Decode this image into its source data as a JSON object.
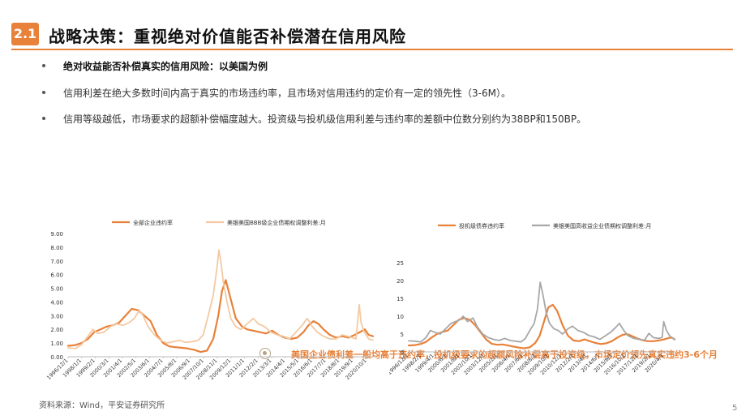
{
  "header": {
    "badge": "2.1",
    "title": "战略决策：重视绝对价值能否补偿潜在信用风险"
  },
  "bullets": [
    "绝对收益能否补偿真实的信用风险：以美国为例",
    "信用利差在绝大多数时间内高于真实的市场违约率，且市场对信用违约的定价有一定的领先性（3-6M）。",
    "信用等级越低，市场要求的超额补偿幅度越大。投资级与投机级信用利差与违约率的差额中位数分别约为38BP和150BP。"
  ],
  "callout": "美国企业债利差一般均高于违约率，投机级要求的超额风险补偿高于投资级，市场定价领先真实违约3-6个月",
  "footer": {
    "source": "资料来源：Wind，平安证券研究所",
    "page": "5"
  },
  "colors": {
    "accent": "#e8813a",
    "spread_light": "#f3c9a2",
    "spread_gray": "#a8a8a8",
    "icon": "#b8a483"
  },
  "chart_data": [
    {
      "type": "line",
      "ylim": [
        0,
        9
      ],
      "yticks": [
        "0.00",
        "1.00",
        "2.00",
        "3.00",
        "4.00",
        "5.00",
        "6.00",
        "7.00",
        "8.00",
        "9.00"
      ],
      "x_start": 1996.917,
      "x_end": 2021.25,
      "xticks": [
        {
          "label": "1996/12/1",
          "x": 1996.917
        },
        {
          "label": "1998/1/1",
          "x": 1998.0
        },
        {
          "label": "1999/2/1",
          "x": 1999.083
        },
        {
          "label": "2000/3/1",
          "x": 2000.167
        },
        {
          "label": "2001/4/1",
          "x": 2001.25
        },
        {
          "label": "2002/5/1",
          "x": 2002.333
        },
        {
          "label": "2003/6/1",
          "x": 2003.417
        },
        {
          "label": "2004/7/1",
          "x": 2004.5
        },
        {
          "label": "2005/8/1",
          "x": 2005.583
        },
        {
          "label": "2006/9/1",
          "x": 2006.667
        },
        {
          "label": "2007/10/1",
          "x": 2007.75
        },
        {
          "label": "2008/11/1",
          "x": 2008.833
        },
        {
          "label": "2009/12/1",
          "x": 2009.917
        },
        {
          "label": "2011/1/1",
          "x": 2011.0
        },
        {
          "label": "2012/2/1",
          "x": 2012.083
        },
        {
          "label": "2013/3/1",
          "x": 2013.167
        },
        {
          "label": "2014/4/1",
          "x": 2014.25
        },
        {
          "label": "2015/5/1",
          "x": 2015.333
        },
        {
          "label": "2016/6/1",
          "x": 2016.417
        },
        {
          "label": "2017/7/1",
          "x": 2017.5
        },
        {
          "label": "2018/8/1",
          "x": 2018.583
        },
        {
          "label": "2019/9/1",
          "x": 2019.667
        },
        {
          "label": "2020/10/1",
          "x": 2020.75
        }
      ],
      "series": [
        {
          "name": "全部企业违约率",
          "color": "#e8813a",
          "width": 2.2,
          "x": [
            1996.917,
            1997.5,
            1998.0,
            1998.5,
            1999.0,
            1999.5,
            2000.0,
            2000.5,
            2001.0,
            2001.5,
            2002.0,
            2002.5,
            2003.0,
            2003.5,
            2004.0,
            2004.5,
            2005.0,
            2005.5,
            2006.0,
            2006.5,
            2007.0,
            2007.5,
            2008.0,
            2008.5,
            2008.9,
            2009.2,
            2009.5,
            2009.9,
            2010.3,
            2010.8,
            2011.2,
            2011.7,
            2012.2,
            2012.7,
            2013.2,
            2013.7,
            2014.2,
            2014.7,
            2015.2,
            2015.7,
            2016.1,
            2016.5,
            2016.9,
            2017.3,
            2017.8,
            2018.3,
            2018.8,
            2019.3,
            2019.8,
            2020.2,
            2020.6,
            2020.9,
            2021.25
          ],
          "y": [
            0.8,
            0.85,
            1.0,
            1.3,
            1.8,
            2.0,
            2.2,
            2.3,
            2.5,
            3.0,
            3.5,
            3.4,
            3.0,
            2.6,
            1.6,
            1.0,
            0.75,
            0.7,
            0.65,
            0.6,
            0.5,
            0.35,
            0.45,
            1.3,
            3.0,
            4.8,
            5.6,
            4.2,
            2.8,
            2.2,
            2.0,
            1.9,
            1.8,
            1.7,
            1.9,
            1.6,
            1.4,
            1.3,
            1.4,
            1.8,
            2.3,
            2.6,
            2.4,
            2.0,
            1.6,
            1.4,
            1.5,
            1.4,
            1.6,
            1.8,
            2.0,
            1.6,
            1.5
          ]
        },
        {
          "name": "美银美国BBB级企业债期权调整利差:月",
          "color": "#f3c9a2",
          "width": 1.8,
          "x": [
            1996.917,
            1997.5,
            1998.0,
            1998.5,
            1998.9,
            1999.3,
            1999.8,
            2000.3,
            2000.8,
            2001.3,
            2001.8,
            2002.2,
            2002.6,
            2002.9,
            2003.3,
            2003.8,
            2004.3,
            2004.8,
            2005.3,
            2005.8,
            2006.3,
            2006.8,
            2007.3,
            2007.7,
            2008.1,
            2008.5,
            2008.8,
            2008.95,
            2009.1,
            2009.3,
            2009.6,
            2009.9,
            2010.3,
            2010.7,
            2011.2,
            2011.7,
            2012.1,
            2012.6,
            2013.1,
            2013.6,
            2014.1,
            2014.6,
            2015.1,
            2015.6,
            2016.0,
            2016.4,
            2016.8,
            2017.3,
            2017.8,
            2018.3,
            2018.8,
            2019.2,
            2019.6,
            2019.9,
            2020.15,
            2020.3,
            2020.5,
            2020.9,
            2021.25
          ],
          "y": [
            0.65,
            0.6,
            0.9,
            1.5,
            2.0,
            1.7,
            1.8,
            2.2,
            2.4,
            2.3,
            2.5,
            2.8,
            3.4,
            3.0,
            2.2,
            1.6,
            1.2,
            1.0,
            1.1,
            1.2,
            1.05,
            1.1,
            1.2,
            1.6,
            3.0,
            4.5,
            6.5,
            7.8,
            7.0,
            5.5,
            4.0,
            2.8,
            2.2,
            2.0,
            2.4,
            2.8,
            2.4,
            2.2,
            1.8,
            1.6,
            1.5,
            1.3,
            1.8,
            2.3,
            2.8,
            2.2,
            1.8,
            1.5,
            1.3,
            1.3,
            1.6,
            1.5,
            1.4,
            1.3,
            3.8,
            2.5,
            1.9,
            1.3,
            1.2
          ]
        }
      ]
    },
    {
      "type": "line",
      "ylim": [
        0,
        25
      ],
      "yticks": [
        "0",
        "5",
        "10",
        "15",
        "20",
        "25"
      ],
      "x_start": 1996.917,
      "x_end": 2021.25,
      "xticks": [
        {
          "label": "1996/12/1",
          "x": 1996.917
        },
        {
          "label": "1998/2/1",
          "x": 1998.083
        },
        {
          "label": "1999/4/1",
          "x": 1999.25
        },
        {
          "label": "2000/6/1",
          "x": 2000.417
        },
        {
          "label": "2001/8/1",
          "x": 2001.583
        },
        {
          "label": "2002/10/1",
          "x": 2002.75
        },
        {
          "label": "2003/12/1",
          "x": 2003.917
        },
        {
          "label": "2005/2/1",
          "x": 2005.083
        },
        {
          "label": "2006/4/1",
          "x": 2006.25
        },
        {
          "label": "2007/6/1",
          "x": 2007.417
        },
        {
          "label": "2008/8/1",
          "x": 2008.583
        },
        {
          "label": "2009/10/1",
          "x": 2009.75
        },
        {
          "label": "2010/12/1",
          "x": 2010.917
        },
        {
          "label": "2012/2/1",
          "x": 2012.083
        },
        {
          "label": "2013/4/1",
          "x": 2013.25
        },
        {
          "label": "2014/6/1",
          "x": 2014.417
        },
        {
          "label": "2015/8/1",
          "x": 2015.583
        },
        {
          "label": "2016/10/1",
          "x": 2016.75
        },
        {
          "label": "2017/12/1",
          "x": 2017.917
        },
        {
          "label": "2019/2/1",
          "x": 2019.083
        },
        {
          "label": "2020/4/1",
          "x": 2020.25
        }
      ],
      "series": [
        {
          "name": "投机级债券违约率",
          "color": "#e8813a",
          "width": 2.2,
          "x": [
            1996.917,
            1997.5,
            1998.0,
            1998.5,
            1999.0,
            1999.5,
            2000.0,
            2000.5,
            2001.0,
            2001.5,
            2002.0,
            2002.5,
            2003.0,
            2003.5,
            2004.0,
            2004.5,
            2005.0,
            2005.5,
            2006.0,
            2006.5,
            2007.0,
            2007.5,
            2008.0,
            2008.5,
            2008.9,
            2009.3,
            2009.7,
            2010.1,
            2010.5,
            2011.0,
            2011.5,
            2012.0,
            2012.5,
            2013.0,
            2013.5,
            2014.0,
            2014.5,
            2015.0,
            2015.5,
            2016.0,
            2016.5,
            2016.9,
            2017.3,
            2017.8,
            2018.3,
            2018.8,
            2019.3,
            2019.8,
            2020.3,
            2020.7,
            2021.0,
            2021.25
          ],
          "y": [
            1.8,
            1.9,
            2.2,
            2.8,
            4.0,
            5.0,
            5.6,
            6.0,
            7.5,
            9.0,
            9.5,
            9.0,
            7.5,
            5.5,
            3.5,
            2.3,
            2.0,
            2.1,
            1.8,
            1.5,
            1.2,
            1.0,
            1.3,
            2.5,
            4.5,
            8.5,
            12.5,
            13.2,
            11.5,
            7.5,
            4.5,
            3.2,
            3.0,
            3.5,
            3.0,
            2.5,
            2.2,
            2.4,
            3.0,
            4.0,
            4.8,
            5.0,
            4.5,
            3.8,
            3.3,
            3.0,
            3.0,
            3.2,
            3.5,
            3.9,
            4.0,
            3.5
          ]
        },
        {
          "name": "美银美国高收益企业债期权调整利差:月",
          "color": "#a8a8a8",
          "width": 1.8,
          "x": [
            1996.917,
            1997.5,
            1998.0,
            1998.5,
            1998.9,
            1999.3,
            1999.8,
            2000.3,
            2000.8,
            2001.2,
            2001.6,
            2001.9,
            2002.3,
            2002.8,
            2003.2,
            2003.7,
            2004.2,
            2004.7,
            2005.2,
            2005.7,
            2006.2,
            2006.7,
            2007.2,
            2007.6,
            2008.0,
            2008.4,
            2008.7,
            2008.95,
            2009.2,
            2009.5,
            2009.8,
            2010.2,
            2010.6,
            2011.0,
            2011.5,
            2011.9,
            2012.4,
            2012.9,
            2013.4,
            2013.9,
            2014.4,
            2014.9,
            2015.4,
            2015.9,
            2016.2,
            2016.6,
            2017.0,
            2017.5,
            2018.0,
            2018.5,
            2018.9,
            2019.3,
            2019.8,
            2020.1,
            2020.25,
            2020.5,
            2020.8,
            2021.25
          ],
          "y": [
            3.1,
            3.0,
            2.8,
            4.0,
            6.0,
            5.5,
            5.0,
            6.5,
            8.0,
            8.5,
            9.0,
            10.0,
            8.5,
            9.5,
            7.0,
            5.0,
            4.0,
            3.5,
            3.2,
            3.8,
            3.2,
            3.0,
            2.8,
            3.8,
            6.0,
            8.0,
            12.0,
            19.5,
            16.0,
            11.0,
            8.0,
            6.5,
            6.0,
            5.0,
            6.5,
            7.2,
            6.0,
            5.5,
            4.6,
            4.2,
            3.5,
            4.5,
            5.5,
            7.0,
            8.0,
            6.0,
            4.5,
            3.8,
            3.5,
            3.3,
            5.2,
            4.0,
            3.8,
            4.0,
            8.5,
            6.0,
            4.5,
            3.4
          ]
        }
      ]
    }
  ]
}
